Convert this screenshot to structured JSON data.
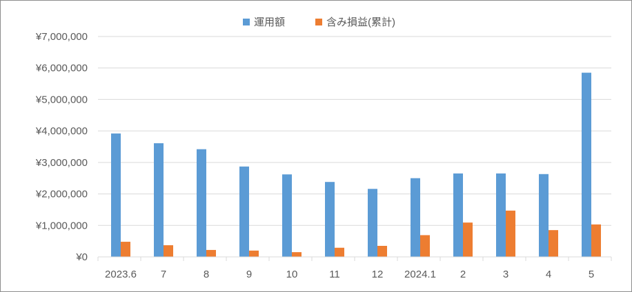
{
  "chart_data": {
    "type": "bar",
    "title": "",
    "xlabel": "",
    "ylabel": "",
    "categories": [
      "2023.6",
      "7",
      "8",
      "9",
      "10",
      "11",
      "12",
      "2024.1",
      "2",
      "3",
      "4",
      "5"
    ],
    "series": [
      {
        "name": "運用額",
        "color": "#5b9bd5",
        "values": [
          3920000,
          3610000,
          3420000,
          2870000,
          2620000,
          2380000,
          2160000,
          2500000,
          2650000,
          2650000,
          2630000,
          5850000
        ]
      },
      {
        "name": "含み損益(累計)",
        "color": "#ed7d31",
        "values": [
          480000,
          370000,
          220000,
          200000,
          150000,
          290000,
          350000,
          690000,
          1090000,
          1470000,
          850000,
          1030000
        ]
      }
    ],
    "ylim": [
      0,
      7000000
    ],
    "yticks": [
      0,
      1000000,
      2000000,
      3000000,
      4000000,
      5000000,
      6000000,
      7000000
    ],
    "ytick_labels": [
      "¥0",
      "¥1,000,000",
      "¥2,000,000",
      "¥3,000,000",
      "¥4,000,000",
      "¥5,000,000",
      "¥6,000,000",
      "¥7,000,000"
    ],
    "grid": true,
    "legend_position": "top-center"
  }
}
